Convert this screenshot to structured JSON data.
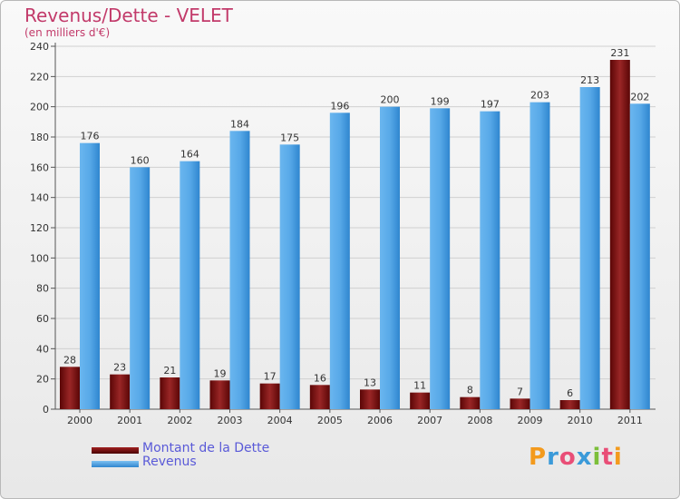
{
  "chart_data": {
    "type": "bar",
    "title": "Revenus/Dette - VELET",
    "subtitle": "(en milliers d'€)",
    "categories": [
      "2000",
      "2001",
      "2002",
      "2003",
      "2004",
      "2005",
      "2006",
      "2007",
      "2008",
      "2009",
      "2010",
      "2011"
    ],
    "series": [
      {
        "name": "Montant de la Dette",
        "values": [
          28,
          23,
          21,
          19,
          17,
          16,
          13,
          11,
          8,
          7,
          6,
          231
        ],
        "color": "#7a1010"
      },
      {
        "name": "Revenus",
        "values": [
          176,
          160,
          164,
          184,
          175,
          196,
          200,
          199,
          197,
          203,
          213,
          202
        ],
        "color": "#4a9fe0"
      }
    ],
    "ylim": [
      0,
      240
    ],
    "yticks": [
      0,
      20,
      40,
      60,
      80,
      100,
      120,
      140,
      160,
      180,
      200,
      220,
      240
    ],
    "grid": true,
    "legend_position": "bottom-left"
  },
  "logo": {
    "text": "Proxiti",
    "colors": [
      "#f39a1d",
      "#3a9ad9",
      "#e94e77",
      "#3a9ad9",
      "#7cbf3a",
      "#e94e77",
      "#f39a1d"
    ]
  }
}
